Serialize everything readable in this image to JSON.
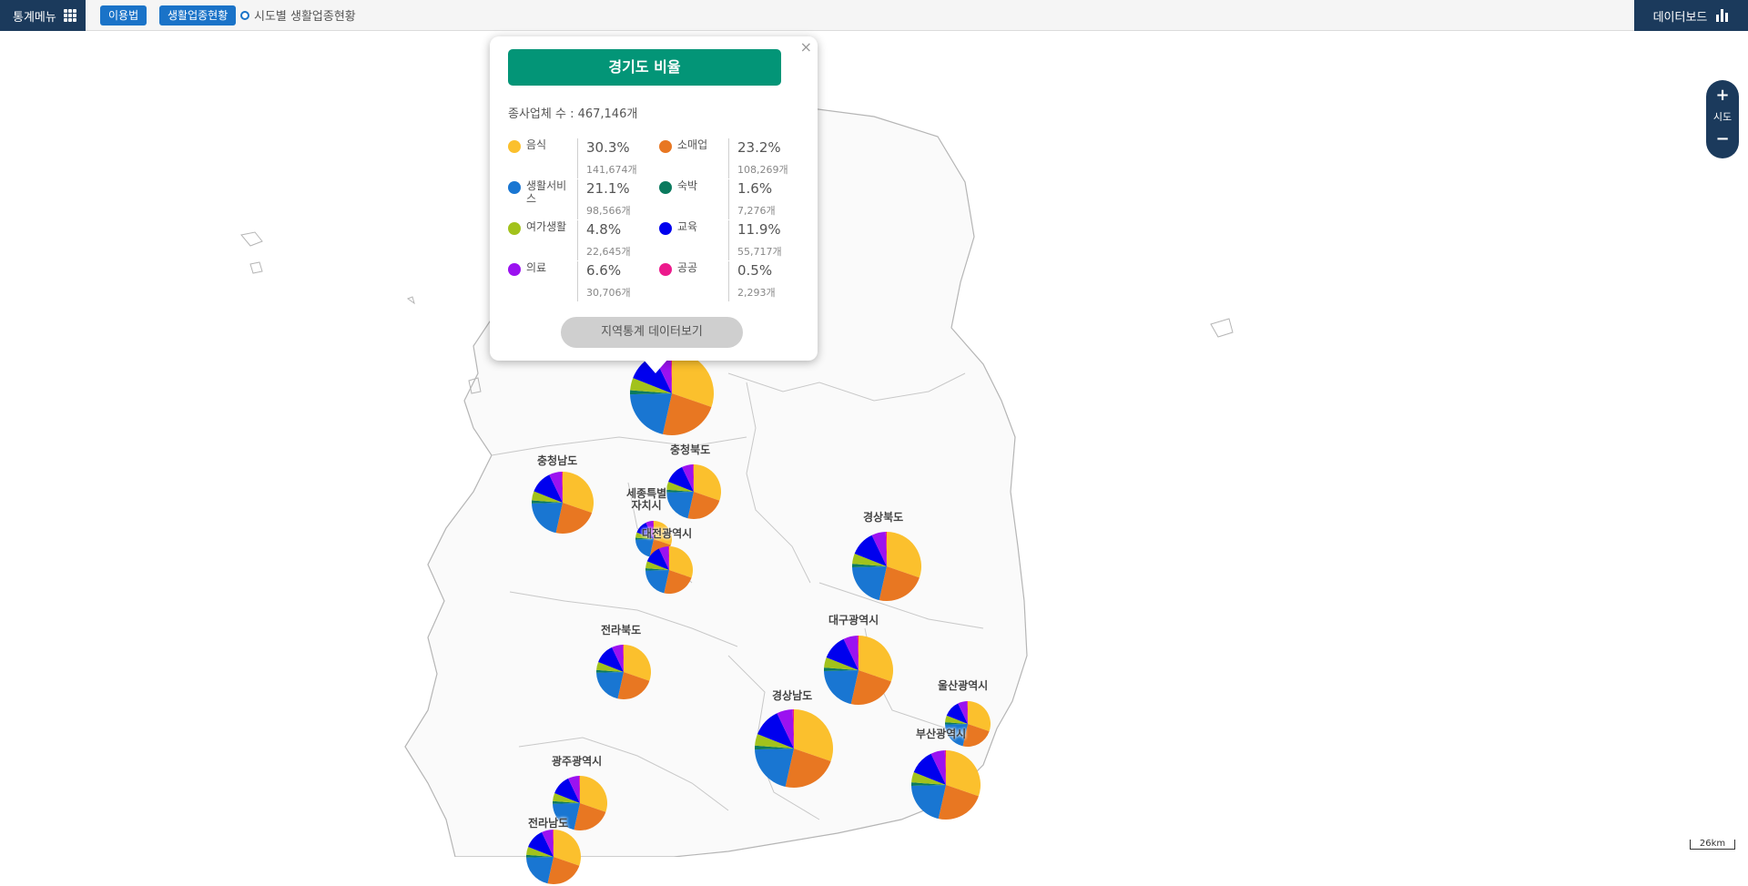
{
  "topbar": {
    "menu_label": "통계메뉴",
    "howto_label": "이용법",
    "theme_label": "생활업종현황",
    "breadcrumb": "시도별 생활업종현황",
    "dashboard_label": "데이터보드"
  },
  "zoom": {
    "plus": "+",
    "level_label": "시도",
    "minus": "−"
  },
  "scale": {
    "label": "26km"
  },
  "popup": {
    "title": "경기도 비율",
    "total": "종사업체 수 : 467,146개",
    "button": "지역통계 데이터보기",
    "close": "×",
    "stats": [
      {
        "label": "음식",
        "pct": "30.3%",
        "count": "141,674개",
        "color": "#fbc02d"
      },
      {
        "label": "소매업",
        "pct": "23.2%",
        "count": "108,269개",
        "color": "#e87722"
      },
      {
        "label": "생활서비스",
        "pct": "21.1%",
        "count": "98,566개",
        "color": "#1976d2"
      },
      {
        "label": "숙박",
        "pct": "1.6%",
        "count": "7,276개",
        "color": "#0b7a5e"
      },
      {
        "label": "여가생활",
        "pct": "4.8%",
        "count": "22,645개",
        "color": "#a2c21c"
      },
      {
        "label": "교육",
        "pct": "11.9%",
        "count": "55,717개",
        "color": "#0000ee"
      },
      {
        "label": "의료",
        "pct": "6.6%",
        "count": "30,706개",
        "color": "#9b12f0"
      },
      {
        "label": "공공",
        "pct": "0.5%",
        "count": "2,293개",
        "color": "#ec1a8c"
      }
    ]
  },
  "regions": [
    {
      "name": "충청남도"
    },
    {
      "name": "충청북도"
    },
    {
      "name": "세종특별\n자치시"
    },
    {
      "name": "대전광역시"
    },
    {
      "name": "경상북도"
    },
    {
      "name": "전라북도"
    },
    {
      "name": "대구광역시"
    },
    {
      "name": "울산광역시"
    },
    {
      "name": "경상남도"
    },
    {
      "name": "부산광역시"
    },
    {
      "name": "광주광역시"
    },
    {
      "name": "전라남도"
    }
  ],
  "pie_shares": [
    30.3,
    23.2,
    21.1,
    1.6,
    4.8,
    11.9,
    6.6,
    0.5
  ]
}
